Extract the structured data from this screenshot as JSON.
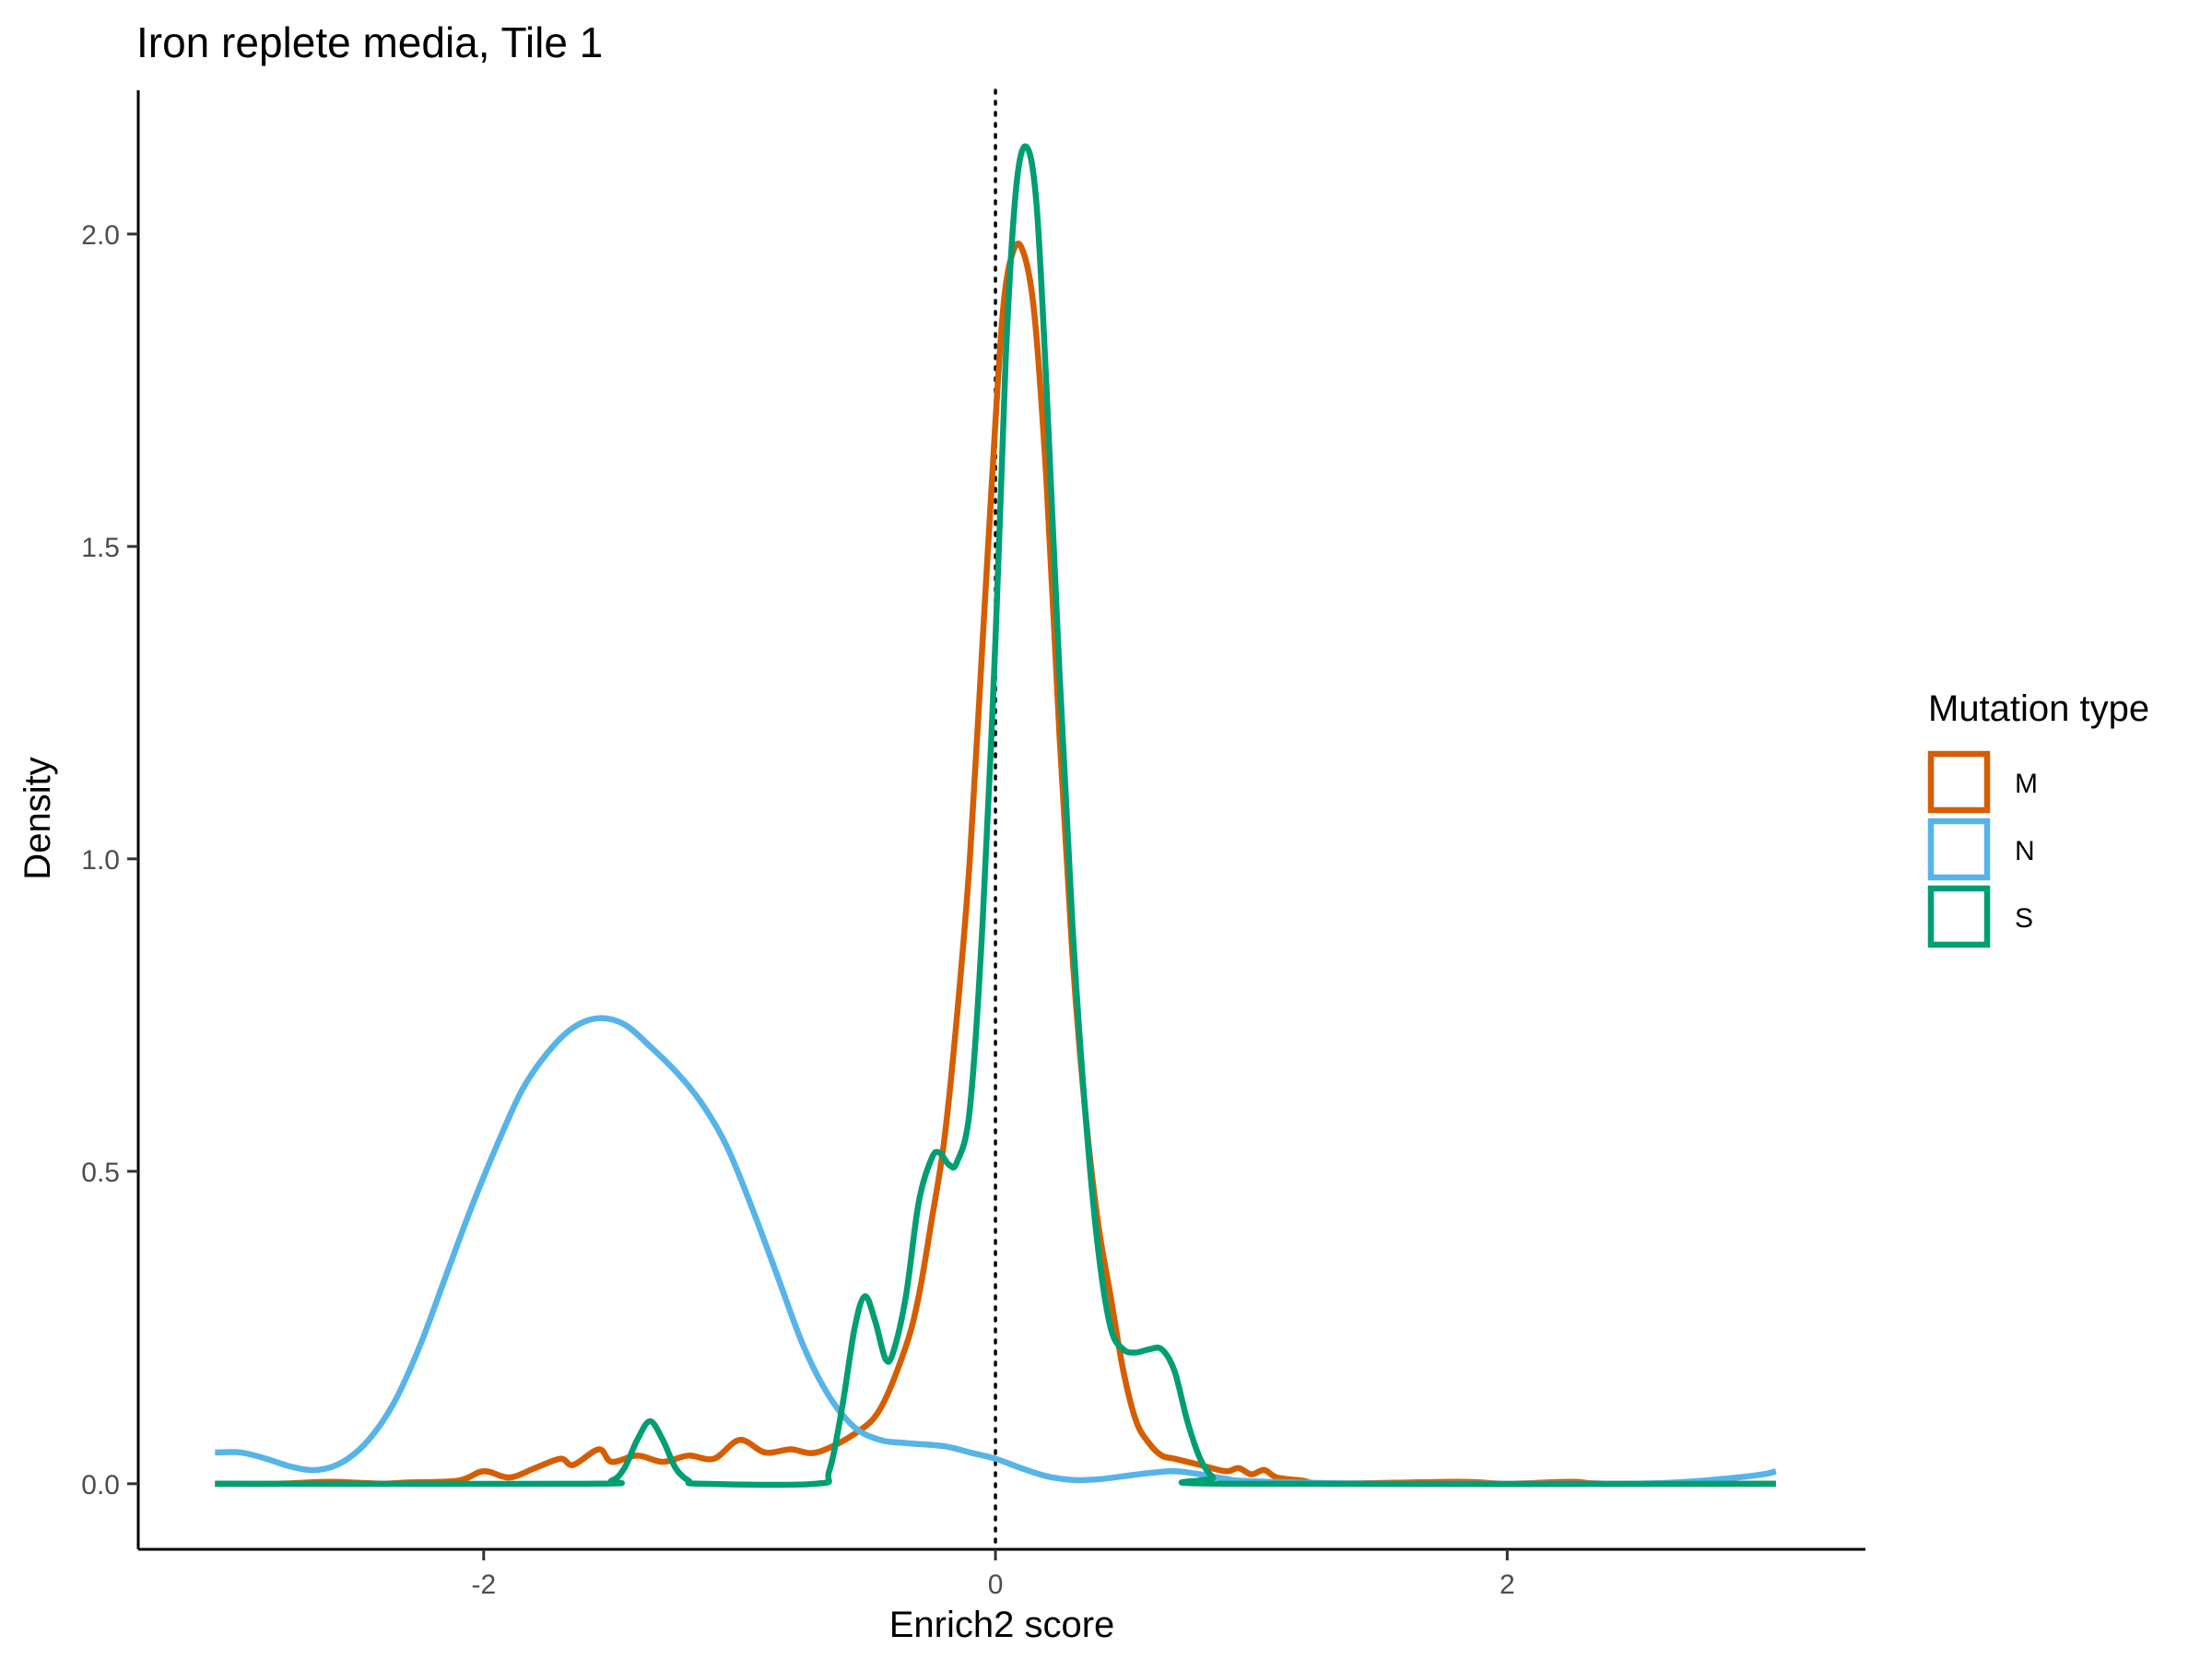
{
  "chart_data": {
    "type": "line",
    "title": "Iron replete media, Tile 1",
    "xlabel": "Enrich2 score",
    "ylabel": "Density",
    "xlim": [
      -3.35,
      3.4
    ],
    "ylim": [
      -0.105,
      2.23
    ],
    "x_ticks": [
      -2,
      0,
      2
    ],
    "x_tick_labels": [
      "-2",
      "0",
      "2"
    ],
    "y_ticks": [
      0.0,
      0.5,
      1.0,
      1.5,
      2.0
    ],
    "y_tick_labels": [
      "0.0",
      "0.5",
      "1.0",
      "1.5",
      "2.0"
    ],
    "reference_line": {
      "x": 0,
      "style": "dotted"
    },
    "grid": false,
    "legend": {
      "title": "Mutation type",
      "position": "right"
    },
    "series": [
      {
        "name": "M",
        "color": "#D55E00",
        "points": [
          [
            -3.05,
            0.0
          ],
          [
            -2.8,
            0.0
          ],
          [
            -2.6,
            0.003
          ],
          [
            -2.4,
            0.0
          ],
          [
            -2.3,
            0.002
          ],
          [
            -2.1,
            0.005
          ],
          [
            -2.0,
            0.02
          ],
          [
            -1.9,
            0.01
          ],
          [
            -1.8,
            0.025
          ],
          [
            -1.7,
            0.04
          ],
          [
            -1.65,
            0.03
          ],
          [
            -1.55,
            0.055
          ],
          [
            -1.5,
            0.035
          ],
          [
            -1.4,
            0.045
          ],
          [
            -1.3,
            0.035
          ],
          [
            -1.2,
            0.045
          ],
          [
            -1.1,
            0.04
          ],
          [
            -1.0,
            0.07
          ],
          [
            -0.9,
            0.05
          ],
          [
            -0.8,
            0.055
          ],
          [
            -0.7,
            0.05
          ],
          [
            -0.55,
            0.08
          ],
          [
            -0.45,
            0.12
          ],
          [
            -0.35,
            0.22
          ],
          [
            -0.3,
            0.3
          ],
          [
            -0.25,
            0.42
          ],
          [
            -0.2,
            0.55
          ],
          [
            -0.15,
            0.75
          ],
          [
            -0.1,
            1.0
          ],
          [
            -0.05,
            1.35
          ],
          [
            0.0,
            1.7
          ],
          [
            0.03,
            1.88
          ],
          [
            0.06,
            1.96
          ],
          [
            0.1,
            1.98
          ],
          [
            0.15,
            1.88
          ],
          [
            0.2,
            1.6
          ],
          [
            0.25,
            1.2
          ],
          [
            0.3,
            0.85
          ],
          [
            0.35,
            0.6
          ],
          [
            0.4,
            0.42
          ],
          [
            0.45,
            0.3
          ],
          [
            0.5,
            0.18
          ],
          [
            0.55,
            0.1
          ],
          [
            0.6,
            0.065
          ],
          [
            0.65,
            0.045
          ],
          [
            0.7,
            0.04
          ],
          [
            0.8,
            0.03
          ],
          [
            0.9,
            0.02
          ],
          [
            0.95,
            0.025
          ],
          [
            1.0,
            0.015
          ],
          [
            1.05,
            0.022
          ],
          [
            1.1,
            0.01
          ],
          [
            1.2,
            0.005
          ],
          [
            1.3,
            0.0
          ],
          [
            1.8,
            0.003
          ],
          [
            2.0,
            0.0
          ],
          [
            2.25,
            0.003
          ],
          [
            2.4,
            0.0
          ],
          [
            3.05,
            0.0
          ]
        ]
      },
      {
        "name": "N",
        "color": "#56B4E9",
        "points": [
          [
            -3.05,
            0.05
          ],
          [
            -2.95,
            0.05
          ],
          [
            -2.85,
            0.04
          ],
          [
            -2.75,
            0.027
          ],
          [
            -2.65,
            0.022
          ],
          [
            -2.55,
            0.035
          ],
          [
            -2.45,
            0.07
          ],
          [
            -2.35,
            0.13
          ],
          [
            -2.25,
            0.22
          ],
          [
            -2.15,
            0.33
          ],
          [
            -2.05,
            0.44
          ],
          [
            -1.95,
            0.54
          ],
          [
            -1.85,
            0.63
          ],
          [
            -1.75,
            0.69
          ],
          [
            -1.65,
            0.73
          ],
          [
            -1.55,
            0.745
          ],
          [
            -1.45,
            0.735
          ],
          [
            -1.35,
            0.7
          ],
          [
            -1.25,
            0.66
          ],
          [
            -1.15,
            0.61
          ],
          [
            -1.05,
            0.54
          ],
          [
            -0.95,
            0.44
          ],
          [
            -0.85,
            0.33
          ],
          [
            -0.75,
            0.22
          ],
          [
            -0.65,
            0.14
          ],
          [
            -0.55,
            0.09
          ],
          [
            -0.45,
            0.07
          ],
          [
            -0.35,
            0.065
          ],
          [
            -0.2,
            0.06
          ],
          [
            -0.1,
            0.05
          ],
          [
            0.0,
            0.04
          ],
          [
            0.1,
            0.025
          ],
          [
            0.2,
            0.012
          ],
          [
            0.3,
            0.006
          ],
          [
            0.4,
            0.007
          ],
          [
            0.5,
            0.012
          ],
          [
            0.6,
            0.017
          ],
          [
            0.7,
            0.02
          ],
          [
            0.8,
            0.015
          ],
          [
            0.9,
            0.008
          ],
          [
            1.0,
            0.004
          ],
          [
            1.5,
            0.0
          ],
          [
            2.0,
            0.0
          ],
          [
            2.5,
            0.0
          ],
          [
            2.7,
            0.003
          ],
          [
            2.85,
            0.008
          ],
          [
            3.0,
            0.015
          ],
          [
            3.05,
            0.02
          ]
        ]
      },
      {
        "name": "S",
        "color": "#009E73",
        "points": [
          [
            -3.05,
            0.0
          ],
          [
            -1.6,
            0.0
          ],
          [
            -1.5,
            0.005
          ],
          [
            -1.45,
            0.025
          ],
          [
            -1.4,
            0.07
          ],
          [
            -1.35,
            0.1
          ],
          [
            -1.3,
            0.07
          ],
          [
            -1.25,
            0.025
          ],
          [
            -1.2,
            0.005
          ],
          [
            -1.15,
            0.0
          ],
          [
            -0.7,
            0.0
          ],
          [
            -0.65,
            0.02
          ],
          [
            -0.6,
            0.12
          ],
          [
            -0.55,
            0.25
          ],
          [
            -0.51,
            0.3
          ],
          [
            -0.47,
            0.26
          ],
          [
            -0.43,
            0.2
          ],
          [
            -0.4,
            0.21
          ],
          [
            -0.35,
            0.3
          ],
          [
            -0.3,
            0.45
          ],
          [
            -0.25,
            0.52
          ],
          [
            -0.22,
            0.53
          ],
          [
            -0.18,
            0.51
          ],
          [
            -0.15,
            0.515
          ],
          [
            -0.1,
            0.6
          ],
          [
            -0.05,
            0.9
          ],
          [
            0.0,
            1.35
          ],
          [
            0.04,
            1.8
          ],
          [
            0.08,
            2.07
          ],
          [
            0.12,
            2.14
          ],
          [
            0.16,
            2.05
          ],
          [
            0.2,
            1.75
          ],
          [
            0.25,
            1.3
          ],
          [
            0.3,
            0.9
          ],
          [
            0.35,
            0.6
          ],
          [
            0.4,
            0.38
          ],
          [
            0.45,
            0.25
          ],
          [
            0.5,
            0.215
          ],
          [
            0.55,
            0.21
          ],
          [
            0.6,
            0.215
          ],
          [
            0.65,
            0.215
          ],
          [
            0.7,
            0.18
          ],
          [
            0.75,
            0.1
          ],
          [
            0.8,
            0.04
          ],
          [
            0.85,
            0.01
          ],
          [
            0.9,
            0.0
          ],
          [
            3.05,
            0.0
          ]
        ]
      }
    ]
  }
}
